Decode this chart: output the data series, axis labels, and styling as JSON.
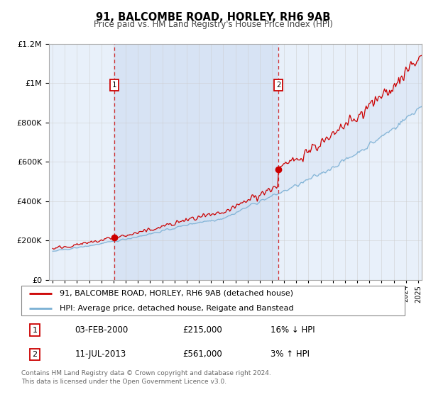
{
  "title": "91, BALCOMBE ROAD, HORLEY, RH6 9AB",
  "subtitle": "Price paid vs. HM Land Registry's House Price Index (HPI)",
  "legend_line1": "91, BALCOMBE ROAD, HORLEY, RH6 9AB (detached house)",
  "legend_line2": "HPI: Average price, detached house, Reigate and Banstead",
  "annotation1_label": "1",
  "annotation1_date": "03-FEB-2000",
  "annotation1_price": "£215,000",
  "annotation1_hpi": "16% ↓ HPI",
  "annotation2_label": "2",
  "annotation2_date": "11-JUL-2013",
  "annotation2_price": "£561,000",
  "annotation2_hpi": "3% ↑ HPI",
  "footer": "Contains HM Land Registry data © Crown copyright and database right 2024.\nThis data is licensed under the Open Government Licence v3.0.",
  "sale1_year": 2000.08,
  "sale1_price": 215000,
  "sale2_year": 2013.53,
  "sale2_price": 561000,
  "ylim": [
    0,
    1200000
  ],
  "xlim_start": 1994.7,
  "xlim_end": 2025.3,
  "red_color": "#cc0000",
  "blue_color": "#7ab0d4",
  "fill_alpha": 0.25,
  "background_color": "#e8f0fa",
  "grid_color": "#cccccc",
  "shade_color": "#c8d8f0"
}
